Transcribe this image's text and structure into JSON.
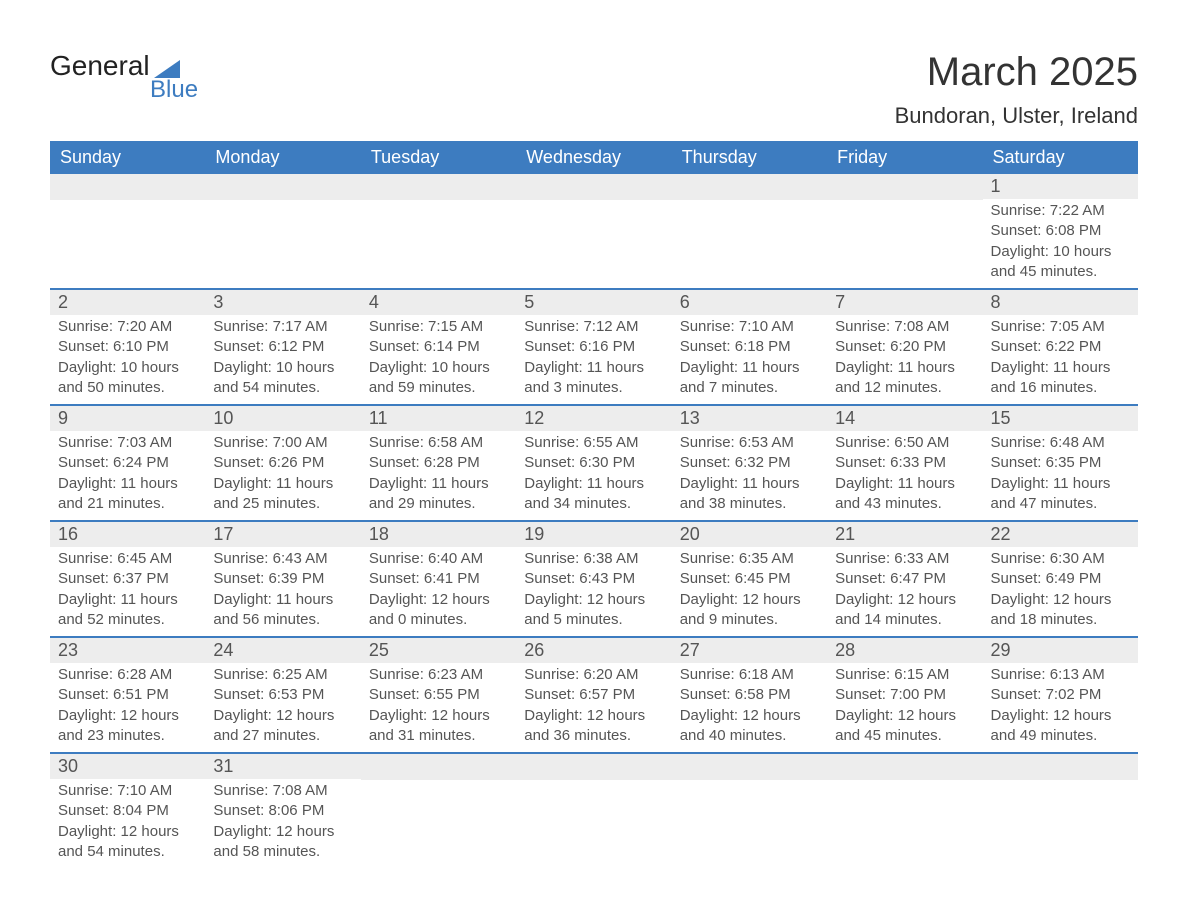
{
  "logo": {
    "text_general": "General",
    "text_blue": "Blue"
  },
  "header": {
    "month_title": "March 2025",
    "location": "Bundoran, Ulster, Ireland"
  },
  "colors": {
    "header_bg": "#3d7cc0",
    "header_text": "#ffffff",
    "daynum_bg": "#ededed",
    "text": "#555555",
    "row_divider": "#3d7cc0",
    "page_bg": "#ffffff"
  },
  "typography": {
    "month_title_fontsize": 40,
    "location_fontsize": 22,
    "dayheader_fontsize": 18,
    "daynum_fontsize": 18,
    "details_fontsize": 15
  },
  "calendar": {
    "type": "table",
    "day_headers": [
      "Sunday",
      "Monday",
      "Tuesday",
      "Wednesday",
      "Thursday",
      "Friday",
      "Saturday"
    ],
    "field_labels": {
      "sunrise": "Sunrise",
      "sunset": "Sunset",
      "daylight": "Daylight"
    },
    "weeks": [
      [
        null,
        null,
        null,
        null,
        null,
        null,
        {
          "day": "1",
          "sunrise": "7:22 AM",
          "sunset": "6:08 PM",
          "daylight": "10 hours and 45 minutes."
        }
      ],
      [
        {
          "day": "2",
          "sunrise": "7:20 AM",
          "sunset": "6:10 PM",
          "daylight": "10 hours and 50 minutes."
        },
        {
          "day": "3",
          "sunrise": "7:17 AM",
          "sunset": "6:12 PM",
          "daylight": "10 hours and 54 minutes."
        },
        {
          "day": "4",
          "sunrise": "7:15 AM",
          "sunset": "6:14 PM",
          "daylight": "10 hours and 59 minutes."
        },
        {
          "day": "5",
          "sunrise": "7:12 AM",
          "sunset": "6:16 PM",
          "daylight": "11 hours and 3 minutes."
        },
        {
          "day": "6",
          "sunrise": "7:10 AM",
          "sunset": "6:18 PM",
          "daylight": "11 hours and 7 minutes."
        },
        {
          "day": "7",
          "sunrise": "7:08 AM",
          "sunset": "6:20 PM",
          "daylight": "11 hours and 12 minutes."
        },
        {
          "day": "8",
          "sunrise": "7:05 AM",
          "sunset": "6:22 PM",
          "daylight": "11 hours and 16 minutes."
        }
      ],
      [
        {
          "day": "9",
          "sunrise": "7:03 AM",
          "sunset": "6:24 PM",
          "daylight": "11 hours and 21 minutes."
        },
        {
          "day": "10",
          "sunrise": "7:00 AM",
          "sunset": "6:26 PM",
          "daylight": "11 hours and 25 minutes."
        },
        {
          "day": "11",
          "sunrise": "6:58 AM",
          "sunset": "6:28 PM",
          "daylight": "11 hours and 29 minutes."
        },
        {
          "day": "12",
          "sunrise": "6:55 AM",
          "sunset": "6:30 PM",
          "daylight": "11 hours and 34 minutes."
        },
        {
          "day": "13",
          "sunrise": "6:53 AM",
          "sunset": "6:32 PM",
          "daylight": "11 hours and 38 minutes."
        },
        {
          "day": "14",
          "sunrise": "6:50 AM",
          "sunset": "6:33 PM",
          "daylight": "11 hours and 43 minutes."
        },
        {
          "day": "15",
          "sunrise": "6:48 AM",
          "sunset": "6:35 PM",
          "daylight": "11 hours and 47 minutes."
        }
      ],
      [
        {
          "day": "16",
          "sunrise": "6:45 AM",
          "sunset": "6:37 PM",
          "daylight": "11 hours and 52 minutes."
        },
        {
          "day": "17",
          "sunrise": "6:43 AM",
          "sunset": "6:39 PM",
          "daylight": "11 hours and 56 minutes."
        },
        {
          "day": "18",
          "sunrise": "6:40 AM",
          "sunset": "6:41 PM",
          "daylight": "12 hours and 0 minutes."
        },
        {
          "day": "19",
          "sunrise": "6:38 AM",
          "sunset": "6:43 PM",
          "daylight": "12 hours and 5 minutes."
        },
        {
          "day": "20",
          "sunrise": "6:35 AM",
          "sunset": "6:45 PM",
          "daylight": "12 hours and 9 minutes."
        },
        {
          "day": "21",
          "sunrise": "6:33 AM",
          "sunset": "6:47 PM",
          "daylight": "12 hours and 14 minutes."
        },
        {
          "day": "22",
          "sunrise": "6:30 AM",
          "sunset": "6:49 PM",
          "daylight": "12 hours and 18 minutes."
        }
      ],
      [
        {
          "day": "23",
          "sunrise": "6:28 AM",
          "sunset": "6:51 PM",
          "daylight": "12 hours and 23 minutes."
        },
        {
          "day": "24",
          "sunrise": "6:25 AM",
          "sunset": "6:53 PM",
          "daylight": "12 hours and 27 minutes."
        },
        {
          "day": "25",
          "sunrise": "6:23 AM",
          "sunset": "6:55 PM",
          "daylight": "12 hours and 31 minutes."
        },
        {
          "day": "26",
          "sunrise": "6:20 AM",
          "sunset": "6:57 PM",
          "daylight": "12 hours and 36 minutes."
        },
        {
          "day": "27",
          "sunrise": "6:18 AM",
          "sunset": "6:58 PM",
          "daylight": "12 hours and 40 minutes."
        },
        {
          "day": "28",
          "sunrise": "6:15 AM",
          "sunset": "7:00 PM",
          "daylight": "12 hours and 45 minutes."
        },
        {
          "day": "29",
          "sunrise": "6:13 AM",
          "sunset": "7:02 PM",
          "daylight": "12 hours and 49 minutes."
        }
      ],
      [
        {
          "day": "30",
          "sunrise": "7:10 AM",
          "sunset": "8:04 PM",
          "daylight": "12 hours and 54 minutes."
        },
        {
          "day": "31",
          "sunrise": "7:08 AM",
          "sunset": "8:06 PM",
          "daylight": "12 hours and 58 minutes."
        },
        null,
        null,
        null,
        null,
        null
      ]
    ]
  }
}
